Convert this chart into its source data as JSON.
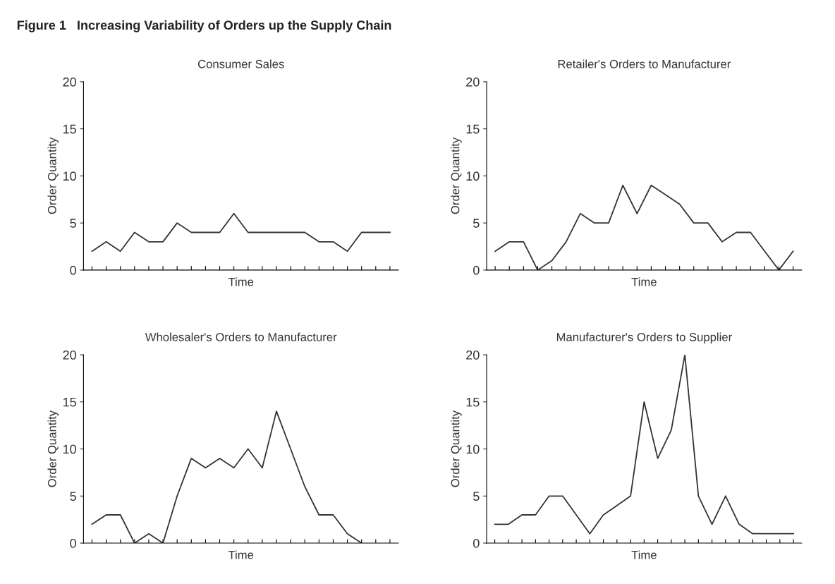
{
  "chart_data": [
    {
      "type": "line",
      "title": "Consumer Sales",
      "xlabel": "Time",
      "ylabel": "Order Quantity",
      "annotations": [
        "Figure 1   Increasing Variability of Orders up the Supply Chain"
      ],
      "categories": [
        null,
        null,
        null,
        null,
        null,
        null,
        null,
        null,
        null,
        null,
        null,
        null,
        null,
        null,
        null,
        null,
        null,
        null,
        null,
        null,
        null,
        null
      ],
      "series": [
        {
          "color": "#333333",
          "values": [
            2,
            3,
            2,
            4,
            3,
            3,
            5,
            4,
            4,
            4,
            6,
            4,
            4,
            4,
            4,
            4,
            3,
            3,
            2,
            4,
            4,
            4
          ]
        }
      ],
      "ylim": [
        0,
        20
      ],
      "yticks": [
        0,
        5,
        10,
        15,
        20
      ],
      "grid": false,
      "marker": "none",
      "line_style": "solid"
    },
    {
      "type": "line",
      "title": "Retailer's Orders to Manufacturer",
      "xlabel": "Time",
      "ylabel": "Order Quantity",
      "categories": [
        null,
        null,
        null,
        null,
        null,
        null,
        null,
        null,
        null,
        null,
        null,
        null,
        null,
        null,
        null,
        null,
        null,
        null,
        null,
        null,
        null,
        null
      ],
      "series": [
        {
          "color": "#333333",
          "values": [
            2,
            3,
            3,
            0,
            1,
            3,
            6,
            5,
            5,
            9,
            6,
            9,
            8,
            7,
            5,
            5,
            3,
            4,
            4,
            2,
            0,
            2
          ]
        }
      ],
      "ylim": [
        0,
        20
      ],
      "yticks": [
        0,
        5,
        10,
        15,
        20
      ],
      "grid": false,
      "marker": "none",
      "line_style": "solid"
    },
    {
      "type": "line",
      "title": "Wholesaler's Orders to Manufacturer",
      "xlabel": "Time",
      "ylabel": "Order Quantity",
      "categories": [
        null,
        null,
        null,
        null,
        null,
        null,
        null,
        null,
        null,
        null,
        null,
        null,
        null,
        null,
        null,
        null,
        null,
        null,
        null,
        null,
        null,
        null
      ],
      "series": [
        {
          "color": "#333333",
          "values": [
            2,
            3,
            3,
            0,
            1,
            0,
            5,
            9,
            8,
            9,
            8,
            10,
            8,
            14,
            10,
            6,
            3,
            3,
            1,
            0,
            null,
            null
          ]
        }
      ],
      "ylim": [
        0,
        20
      ],
      "yticks": [
        0,
        5,
        10,
        15,
        20
      ],
      "grid": false,
      "marker": "none",
      "line_style": "solid"
    },
    {
      "type": "line",
      "title": "Manufacturer's Orders to Supplier",
      "xlabel": "Time",
      "ylabel": "Order Quantity",
      "categories": [
        null,
        null,
        null,
        null,
        null,
        null,
        null,
        null,
        null,
        null,
        null,
        null,
        null,
        null,
        null,
        null,
        null,
        null,
        null,
        null,
        null,
        null,
        null
      ],
      "series": [
        {
          "color": "#333333",
          "values": [
            2,
            2,
            3,
            3,
            5,
            5,
            3,
            1,
            3,
            4,
            5,
            15,
            9,
            12,
            20,
            5,
            2,
            5,
            2,
            1,
            1,
            1,
            1
          ]
        }
      ],
      "ylim": [
        0,
        20
      ],
      "yticks": [
        0,
        5,
        10,
        15,
        20
      ],
      "grid": false,
      "marker": "none",
      "line_style": "solid"
    }
  ]
}
